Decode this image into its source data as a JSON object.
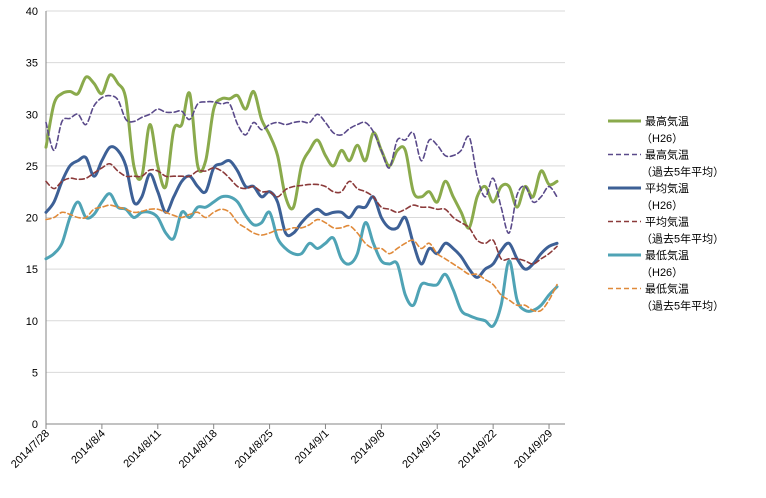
{
  "chart_data": {
    "type": "line",
    "title": "",
    "xlabel": "",
    "ylabel": "",
    "ylim": [
      0,
      40
    ],
    "y_ticks": [
      0,
      5,
      10,
      15,
      20,
      25,
      30,
      35,
      40
    ],
    "x_start": "2014/7/28",
    "x_end": "2014/10/1",
    "x_ticks": [
      "2014/7/28",
      "2014/8/4",
      "2014/8/11",
      "2014/8/18",
      "2014/8/25",
      "2014/9/1",
      "2014/9/8",
      "2014/9/15",
      "2014/9/22",
      "2014/9/29"
    ],
    "grid": "horizontal",
    "legend_position": "right",
    "series": [
      {
        "name": [
          "最高気温",
          "（H26）"
        ],
        "color": "#8aaa4c",
        "style": "solid",
        "values": [
          26.8,
          31.0,
          32.0,
          32.2,
          32.0,
          33.6,
          33.0,
          32.0,
          33.8,
          33.0,
          31.5,
          25.0,
          24.0,
          29.0,
          25.0,
          23.0,
          28.5,
          29.0,
          32.0,
          25.0,
          25.5,
          30.5,
          31.5,
          31.5,
          31.8,
          30.5,
          32.2,
          29.5,
          28.0,
          26.0,
          22.0,
          21.0,
          25.0,
          26.5,
          27.5,
          26.0,
          25.0,
          26.5,
          25.5,
          27.0,
          25.5,
          28.2,
          26.5,
          25.0,
          26.5,
          26.5,
          22.5,
          22.0,
          22.5,
          21.5,
          23.5,
          22.0,
          20.5,
          19.0,
          22.0,
          23.0,
          21.5,
          23.0,
          23.0,
          21.0,
          23.0,
          22.0,
          24.5,
          23.2,
          23.5
        ]
      },
      {
        "name": [
          "最高気温",
          "（過去5年平均）"
        ],
        "color": "#5a4a8a",
        "style": "dashed",
        "values": [
          29.2,
          26.5,
          29.3,
          29.6,
          30.0,
          29.0,
          30.8,
          31.6,
          31.8,
          31.4,
          29.5,
          29.3,
          29.7,
          30.0,
          30.5,
          30.2,
          30.2,
          30.3,
          29.5,
          31.0,
          31.2,
          31.2,
          31.0,
          31.0,
          29.0,
          28.0,
          29.2,
          28.5,
          29.0,
          29.2,
          29.0,
          29.2,
          29.3,
          29.2,
          30.0,
          29.2,
          28.2,
          28.0,
          28.6,
          29.0,
          29.2,
          28.3,
          26.5,
          24.8,
          27.5,
          27.5,
          28.2,
          25.5,
          27.5,
          27.0,
          26.0,
          26.0,
          26.5,
          27.8,
          24.0,
          22.0,
          23.8,
          21.0,
          18.5,
          22.2,
          23.0,
          21.5,
          22.0,
          23.0,
          22.0
        ]
      },
      {
        "name": [
          "平均気温",
          "（H26）"
        ],
        "color": "#3d6096",
        "style": "solid",
        "values": [
          20.5,
          21.5,
          23.5,
          25.0,
          25.5,
          25.8,
          24.0,
          25.5,
          26.8,
          26.5,
          25.0,
          21.5,
          22.0,
          24.2,
          22.5,
          20.5,
          22.0,
          23.5,
          24.0,
          23.0,
          22.5,
          24.8,
          25.2,
          25.5,
          24.5,
          23.0,
          23.0,
          22.0,
          22.5,
          21.5,
          18.5,
          18.5,
          19.5,
          20.3,
          20.8,
          20.3,
          20.5,
          20.5,
          20.0,
          21.0,
          21.0,
          22.0,
          20.0,
          19.0,
          19.0,
          20.0,
          17.5,
          15.5,
          17.0,
          16.5,
          17.5,
          17.0,
          16.2,
          15.0,
          14.2,
          15.0,
          15.5,
          16.8,
          17.5,
          16.0,
          15.0,
          15.5,
          16.5,
          17.2,
          17.5
        ]
      },
      {
        "name": [
          "平均気温",
          "（過去5年平均）"
        ],
        "color": "#8b3a3a",
        "style": "dashed",
        "values": [
          23.5,
          22.8,
          23.5,
          23.8,
          23.7,
          23.8,
          24.3,
          24.8,
          25.2,
          24.5,
          24.0,
          24.0,
          24.0,
          24.6,
          24.5,
          24.0,
          24.0,
          24.0,
          24.0,
          24.5,
          24.5,
          24.8,
          24.5,
          23.8,
          23.0,
          22.8,
          23.0,
          22.5,
          22.5,
          22.0,
          22.7,
          23.0,
          23.1,
          23.2,
          23.2,
          23.0,
          22.5,
          22.5,
          23.5,
          22.8,
          22.5,
          22.0,
          21.0,
          20.8,
          20.5,
          20.8,
          21.2,
          21.0,
          21.0,
          20.8,
          20.8,
          20.0,
          19.5,
          19.0,
          17.8,
          17.5,
          17.8,
          16.0,
          16.0,
          16.0,
          15.8,
          15.5,
          16.0,
          16.5,
          17.2
        ]
      },
      {
        "name": [
          "最低気温",
          "（H26）"
        ],
        "color": "#4fa3b5",
        "style": "solid",
        "values": [
          16.0,
          16.5,
          17.5,
          20.0,
          21.5,
          20.0,
          20.3,
          21.5,
          22.3,
          21.0,
          20.8,
          20.0,
          20.5,
          20.5,
          20.0,
          18.5,
          18.0,
          20.5,
          20.0,
          21.0,
          21.0,
          21.5,
          22.0,
          22.0,
          21.5,
          20.2,
          19.3,
          19.5,
          20.5,
          18.0,
          17.0,
          16.5,
          16.5,
          17.5,
          17.0,
          17.5,
          18.0,
          16.0,
          15.5,
          16.5,
          19.5,
          17.5,
          15.8,
          15.5,
          15.5,
          12.5,
          11.5,
          13.5,
          13.5,
          13.5,
          14.5,
          13.0,
          11.0,
          10.5,
          10.2,
          10.0,
          9.5,
          11.5,
          15.8,
          12.0,
          11.0,
          11.0,
          11.5,
          12.5,
          13.3
        ]
      },
      {
        "name": [
          "最低気温",
          "（過去5年平均）"
        ],
        "color": "#e08a3a",
        "style": "dashed",
        "values": [
          19.8,
          20.0,
          20.5,
          20.3,
          20.0,
          20.0,
          20.8,
          21.0,
          21.2,
          21.0,
          20.8,
          20.5,
          20.6,
          20.8,
          20.8,
          20.5,
          20.2,
          20.0,
          20.3,
          20.5,
          20.0,
          20.5,
          20.8,
          20.5,
          19.5,
          19.0,
          18.5,
          18.3,
          18.5,
          18.8,
          18.8,
          19.0,
          19.0,
          19.3,
          19.8,
          19.5,
          19.0,
          19.0,
          19.2,
          18.5,
          17.5,
          17.0,
          17.0,
          16.5,
          17.0,
          17.5,
          17.8,
          17.0,
          17.5,
          16.5,
          16.0,
          15.5,
          15.0,
          14.5,
          14.5,
          14.0,
          13.5,
          12.5,
          12.0,
          11.5,
          11.5,
          11.0,
          11.0,
          12.0,
          13.5
        ]
      }
    ]
  }
}
